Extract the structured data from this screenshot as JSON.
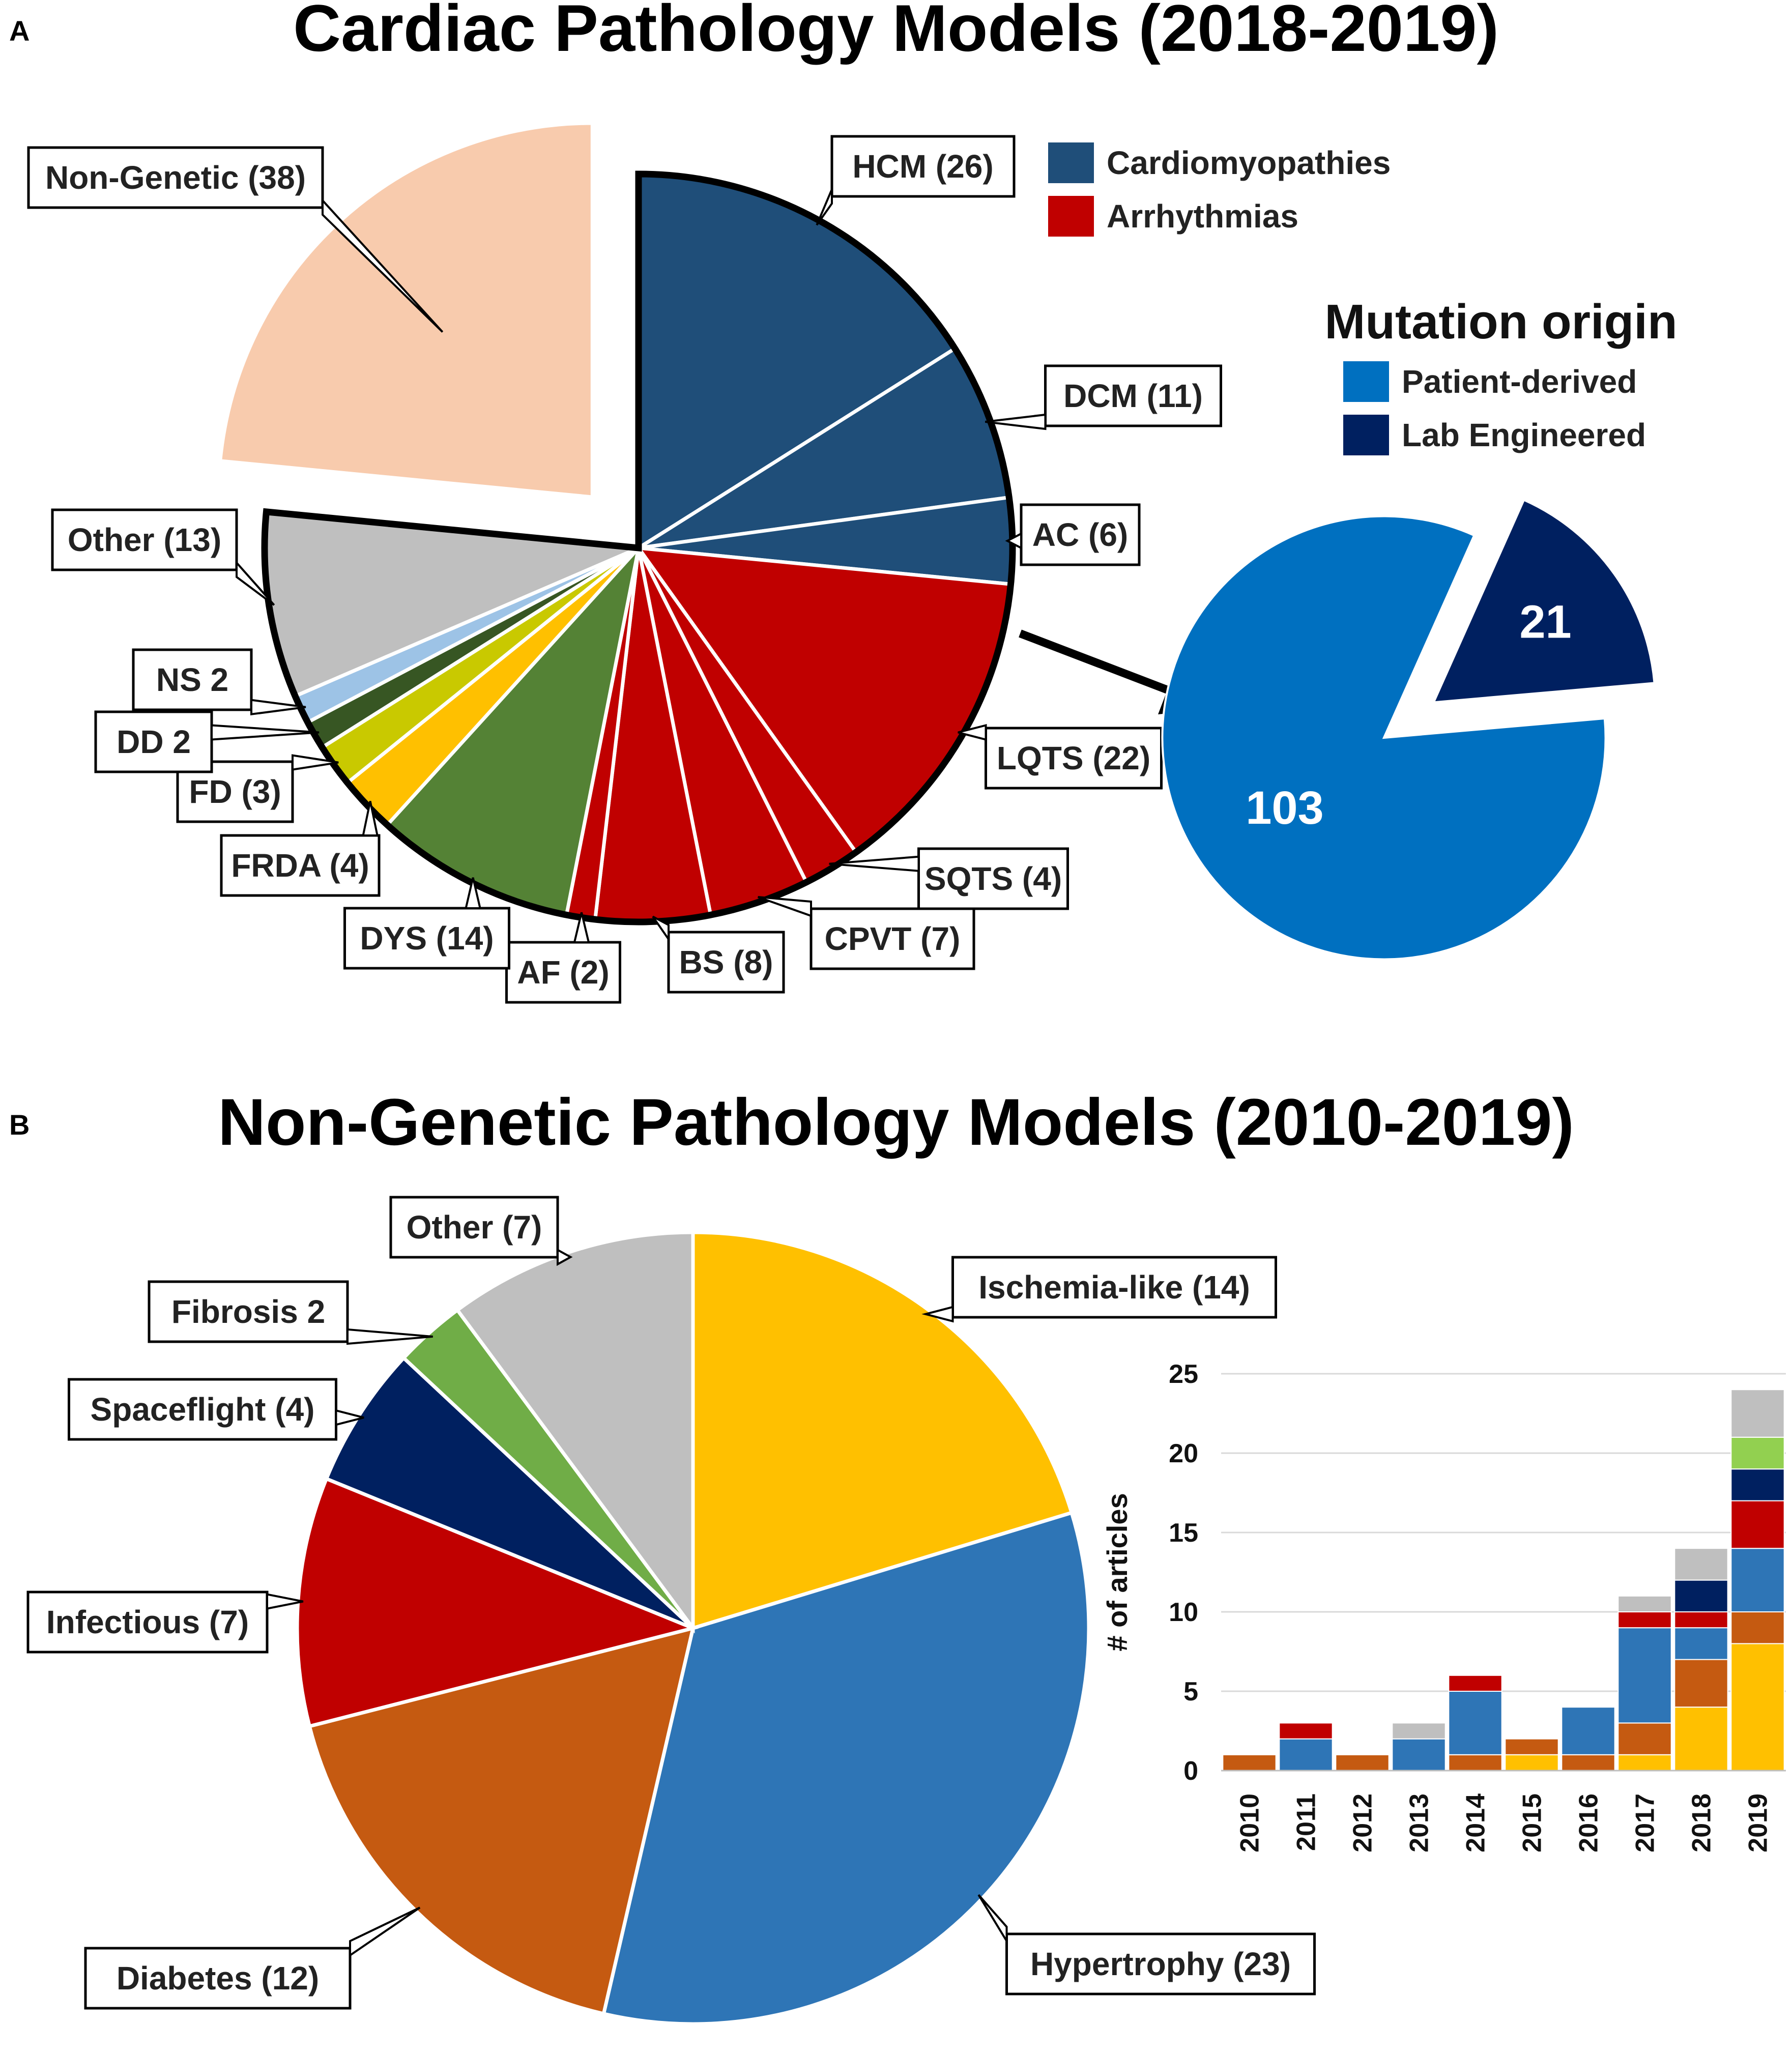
{
  "panels": {
    "a": {
      "letter": "A",
      "title": "Cardiac Pathology Models (2018-2019)"
    },
    "b": {
      "letter": "B",
      "title": "Non-Genetic Pathology Models (2010-2019)"
    }
  },
  "legend_a": {
    "items": [
      {
        "label": "Cardiomyopathies",
        "color": "#1f4e79"
      },
      {
        "label": "Arrhythmias",
        "color": "#c00000"
      }
    ]
  },
  "mutation_origin": {
    "title": "Mutation origin",
    "items": [
      {
        "label": "Patient-derived",
        "color": "#0070c0"
      },
      {
        "label": "Lab Engineered",
        "color": "#002060"
      }
    ]
  },
  "chart_data": [
    {
      "type": "pie",
      "title": "Cardiac Pathology Models (2018-2019)",
      "slices": [
        {
          "label": "HCM (26)",
          "name": "HCM",
          "value": 26,
          "group": "Cardiomyopathies",
          "color": "#1f4e79"
        },
        {
          "label": "DCM (11)",
          "name": "DCM",
          "value": 11,
          "group": "Cardiomyopathies",
          "color": "#1f4e79"
        },
        {
          "label": "AC (6)",
          "name": "AC",
          "value": 6,
          "group": "Cardiomyopathies",
          "color": "#1f4e79"
        },
        {
          "label": "LQTS (22)",
          "name": "LQTS",
          "value": 22,
          "group": "Arrhythmias",
          "color": "#c00000"
        },
        {
          "label": "SQTS (4)",
          "name": "SQTS",
          "value": 4,
          "group": "Arrhythmias",
          "color": "#c00000"
        },
        {
          "label": "CPVT (7)",
          "name": "CPVT",
          "value": 7,
          "group": "Arrhythmias",
          "color": "#c00000"
        },
        {
          "label": "BS (8)",
          "name": "BS",
          "value": 8,
          "group": "Arrhythmias",
          "color": "#c00000"
        },
        {
          "label": "AF (2)",
          "name": "AF",
          "value": 2,
          "group": "Arrhythmias",
          "color": "#c00000"
        },
        {
          "label": "DYS (14)",
          "name": "DYS",
          "value": 14,
          "color": "#548235"
        },
        {
          "label": "FRDA (4)",
          "name": "FRDA",
          "value": 4,
          "color": "#ffc000"
        },
        {
          "label": "FD (3)",
          "name": "FD",
          "value": 3,
          "color": "#c9c900"
        },
        {
          "label": "DD 2",
          "name": "DD",
          "value": 2,
          "color": "#375623"
        },
        {
          "label": "NS 2",
          "name": "NS",
          "value": 2,
          "color": "#9dc3e6"
        },
        {
          "label": "Other (13)",
          "name": "Other",
          "value": 13,
          "color": "#bfbfbf"
        },
        {
          "label": "Non-Genetic (38)",
          "name": "Non-Genetic",
          "value": 38,
          "color": "#f8cbad",
          "exploded": true
        }
      ]
    },
    {
      "type": "pie",
      "title": "Mutation origin",
      "slices": [
        {
          "label": "103",
          "name": "Patient-derived",
          "value": 103,
          "color": "#0070c0"
        },
        {
          "label": "21",
          "name": "Lab Engineered",
          "value": 21,
          "color": "#002060",
          "exploded": true
        }
      ]
    },
    {
      "type": "pie",
      "title": "Non-Genetic Pathology Models (2010-2019)",
      "slices": [
        {
          "label": "Ischemia-like (14)",
          "name": "Ischemia-like",
          "value": 14,
          "color": "#ffc000"
        },
        {
          "label": "Hypertrophy (23)",
          "name": "Hypertrophy",
          "value": 23,
          "color": "#2e75b6"
        },
        {
          "label": "Diabetes (12)",
          "name": "Diabetes",
          "value": 12,
          "color": "#c55a11"
        },
        {
          "label": "Infectious (7)",
          "name": "Infectious",
          "value": 7,
          "color": "#c00000"
        },
        {
          "label": "Spaceflight (4)",
          "name": "Spaceflight",
          "value": 4,
          "color": "#002060"
        },
        {
          "label": "Fibrosis 2",
          "name": "Fibrosis",
          "value": 2,
          "color": "#70ad47"
        },
        {
          "label": "Other (7)",
          "name": "Other",
          "value": 7,
          "color": "#bfbfbf"
        }
      ]
    },
    {
      "type": "bar",
      "stacked": true,
      "ylabel": "# of articles",
      "ylim": [
        0,
        25
      ],
      "yticks": [
        0,
        5,
        10,
        15,
        20,
        25
      ],
      "categories": [
        "2010",
        "2011",
        "2012",
        "2013",
        "2014",
        "2015",
        "2016",
        "2017",
        "2018",
        "2019"
      ],
      "series": [
        {
          "name": "Ischemia-like",
          "color": "#ffc000",
          "values": [
            0,
            0,
            0,
            0,
            0,
            1,
            0,
            1,
            4,
            8
          ]
        },
        {
          "name": "Diabetes",
          "color": "#c55a11",
          "values": [
            1,
            0,
            1,
            0,
            1,
            1,
            1,
            2,
            3,
            2
          ]
        },
        {
          "name": "Hypertrophy",
          "color": "#2e75b6",
          "values": [
            0,
            2,
            0,
            2,
            4,
            0,
            3,
            6,
            2,
            4
          ]
        },
        {
          "name": "Infectious",
          "color": "#c00000",
          "values": [
            0,
            1,
            0,
            0,
            1,
            0,
            0,
            1,
            1,
            3
          ]
        },
        {
          "name": "Spaceflight",
          "color": "#002060",
          "values": [
            0,
            0,
            0,
            0,
            0,
            0,
            0,
            0,
            2,
            2
          ]
        },
        {
          "name": "Fibrosis",
          "color": "#92d050",
          "values": [
            0,
            0,
            0,
            0,
            0,
            0,
            0,
            0,
            0,
            2
          ]
        },
        {
          "name": "Other",
          "color": "#bfbfbf",
          "values": [
            0,
            0,
            0,
            1,
            0,
            0,
            0,
            1,
            2,
            3
          ]
        }
      ]
    }
  ]
}
